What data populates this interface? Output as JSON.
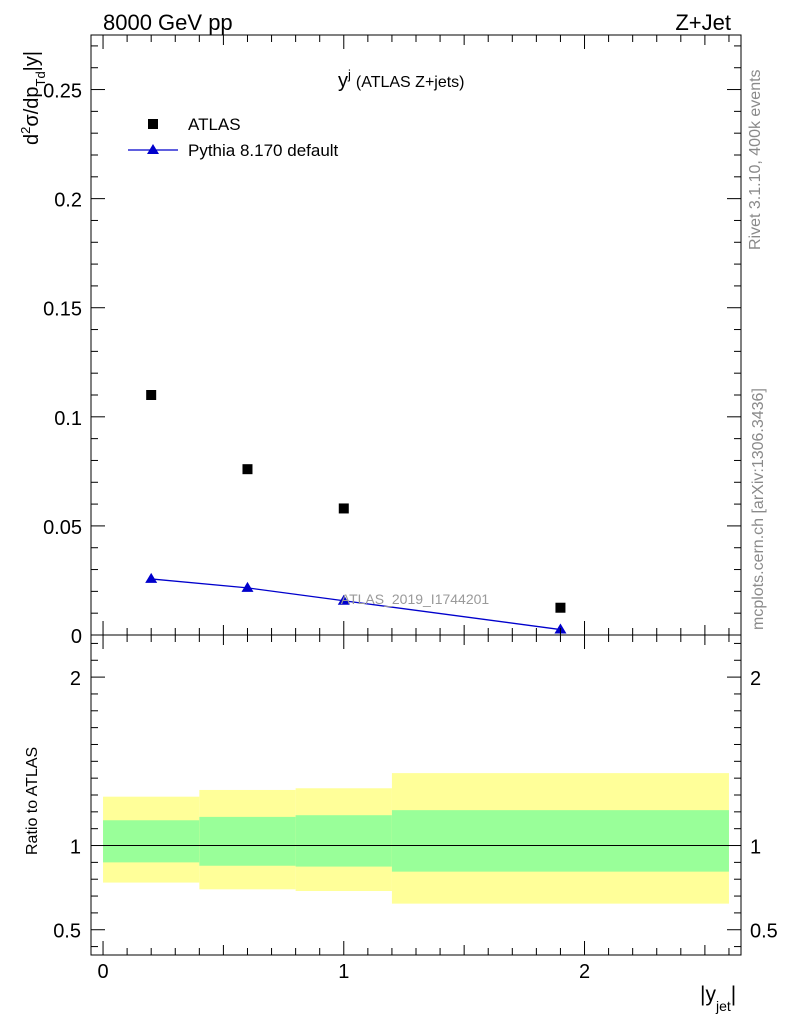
{
  "header": {
    "energy_label": "8000 GeV pp",
    "process_label": "Z+Jet"
  },
  "side_labels": {
    "rivet": "Rivet 3.1.10,  400k events",
    "mcplots": "mcplots.cern.ch [arXiv:1306.3436]"
  },
  "colors": {
    "atlas_marker": "#000000",
    "pythia": "#0000cc",
    "band_inner": "#99ff99",
    "band_outer": "#ffff99"
  },
  "chart_data": [
    {
      "type": "scatter",
      "title": "y",
      "title_sup": "j",
      "subtitle": "(ATLAS Z+jets)",
      "analysis_label": "ATLAS_2019_I1744201",
      "ylabel": "d²σ/dp_Td|y|",
      "ylim": [
        0,
        0.275
      ],
      "yticks": [
        0,
        0.05,
        0.1,
        0.15,
        0.2,
        0.25
      ],
      "ytick_labels": [
        "0",
        "0.05",
        "0.1",
        "0.15",
        "0.2",
        "0.25"
      ],
      "xlim": [
        -0.05,
        2.65
      ],
      "legend": {
        "position": "top-left",
        "entries": [
          "ATLAS",
          "Pythia 8.170 default"
        ]
      },
      "series": [
        {
          "name": "ATLAS",
          "marker": "square",
          "x": [
            0.2,
            0.6,
            1.0,
            1.9
          ],
          "y": [
            0.11,
            0.076,
            0.058,
            0.0125
          ]
        },
        {
          "name": "Pythia 8.170 default",
          "marker": "triangle",
          "line": true,
          "x": [
            0.2,
            0.6,
            1.0,
            1.9
          ],
          "y": [
            0.0257,
            0.0216,
            0.0157,
            0.0025
          ]
        }
      ]
    },
    {
      "type": "band",
      "ylabel": "Ratio to ATLAS",
      "xlabel": "|y_jet|",
      "ylim": [
        0.35,
        2.25
      ],
      "yticks": [
        0.5,
        1,
        2
      ],
      "ytick_labels": [
        "0.5",
        "1",
        "2"
      ],
      "xlim": [
        -0.05,
        2.65
      ],
      "xticks": [
        0,
        1,
        2
      ],
      "xtick_labels": [
        "0",
        "1",
        "2"
      ],
      "reference": 1,
      "bins": [
        {
          "x0": 0.0,
          "x1": 0.4,
          "inner": [
            0.9,
            1.15
          ],
          "outer": [
            0.78,
            1.29
          ]
        },
        {
          "x0": 0.4,
          "x1": 0.8,
          "inner": [
            0.88,
            1.17
          ],
          "outer": [
            0.74,
            1.33
          ]
        },
        {
          "x0": 0.8,
          "x1": 1.2,
          "inner": [
            0.875,
            1.18
          ],
          "outer": [
            0.73,
            1.34
          ]
        },
        {
          "x0": 1.2,
          "x1": 2.6,
          "inner": [
            0.845,
            1.21
          ],
          "outer": [
            0.655,
            1.43
          ]
        }
      ]
    }
  ]
}
